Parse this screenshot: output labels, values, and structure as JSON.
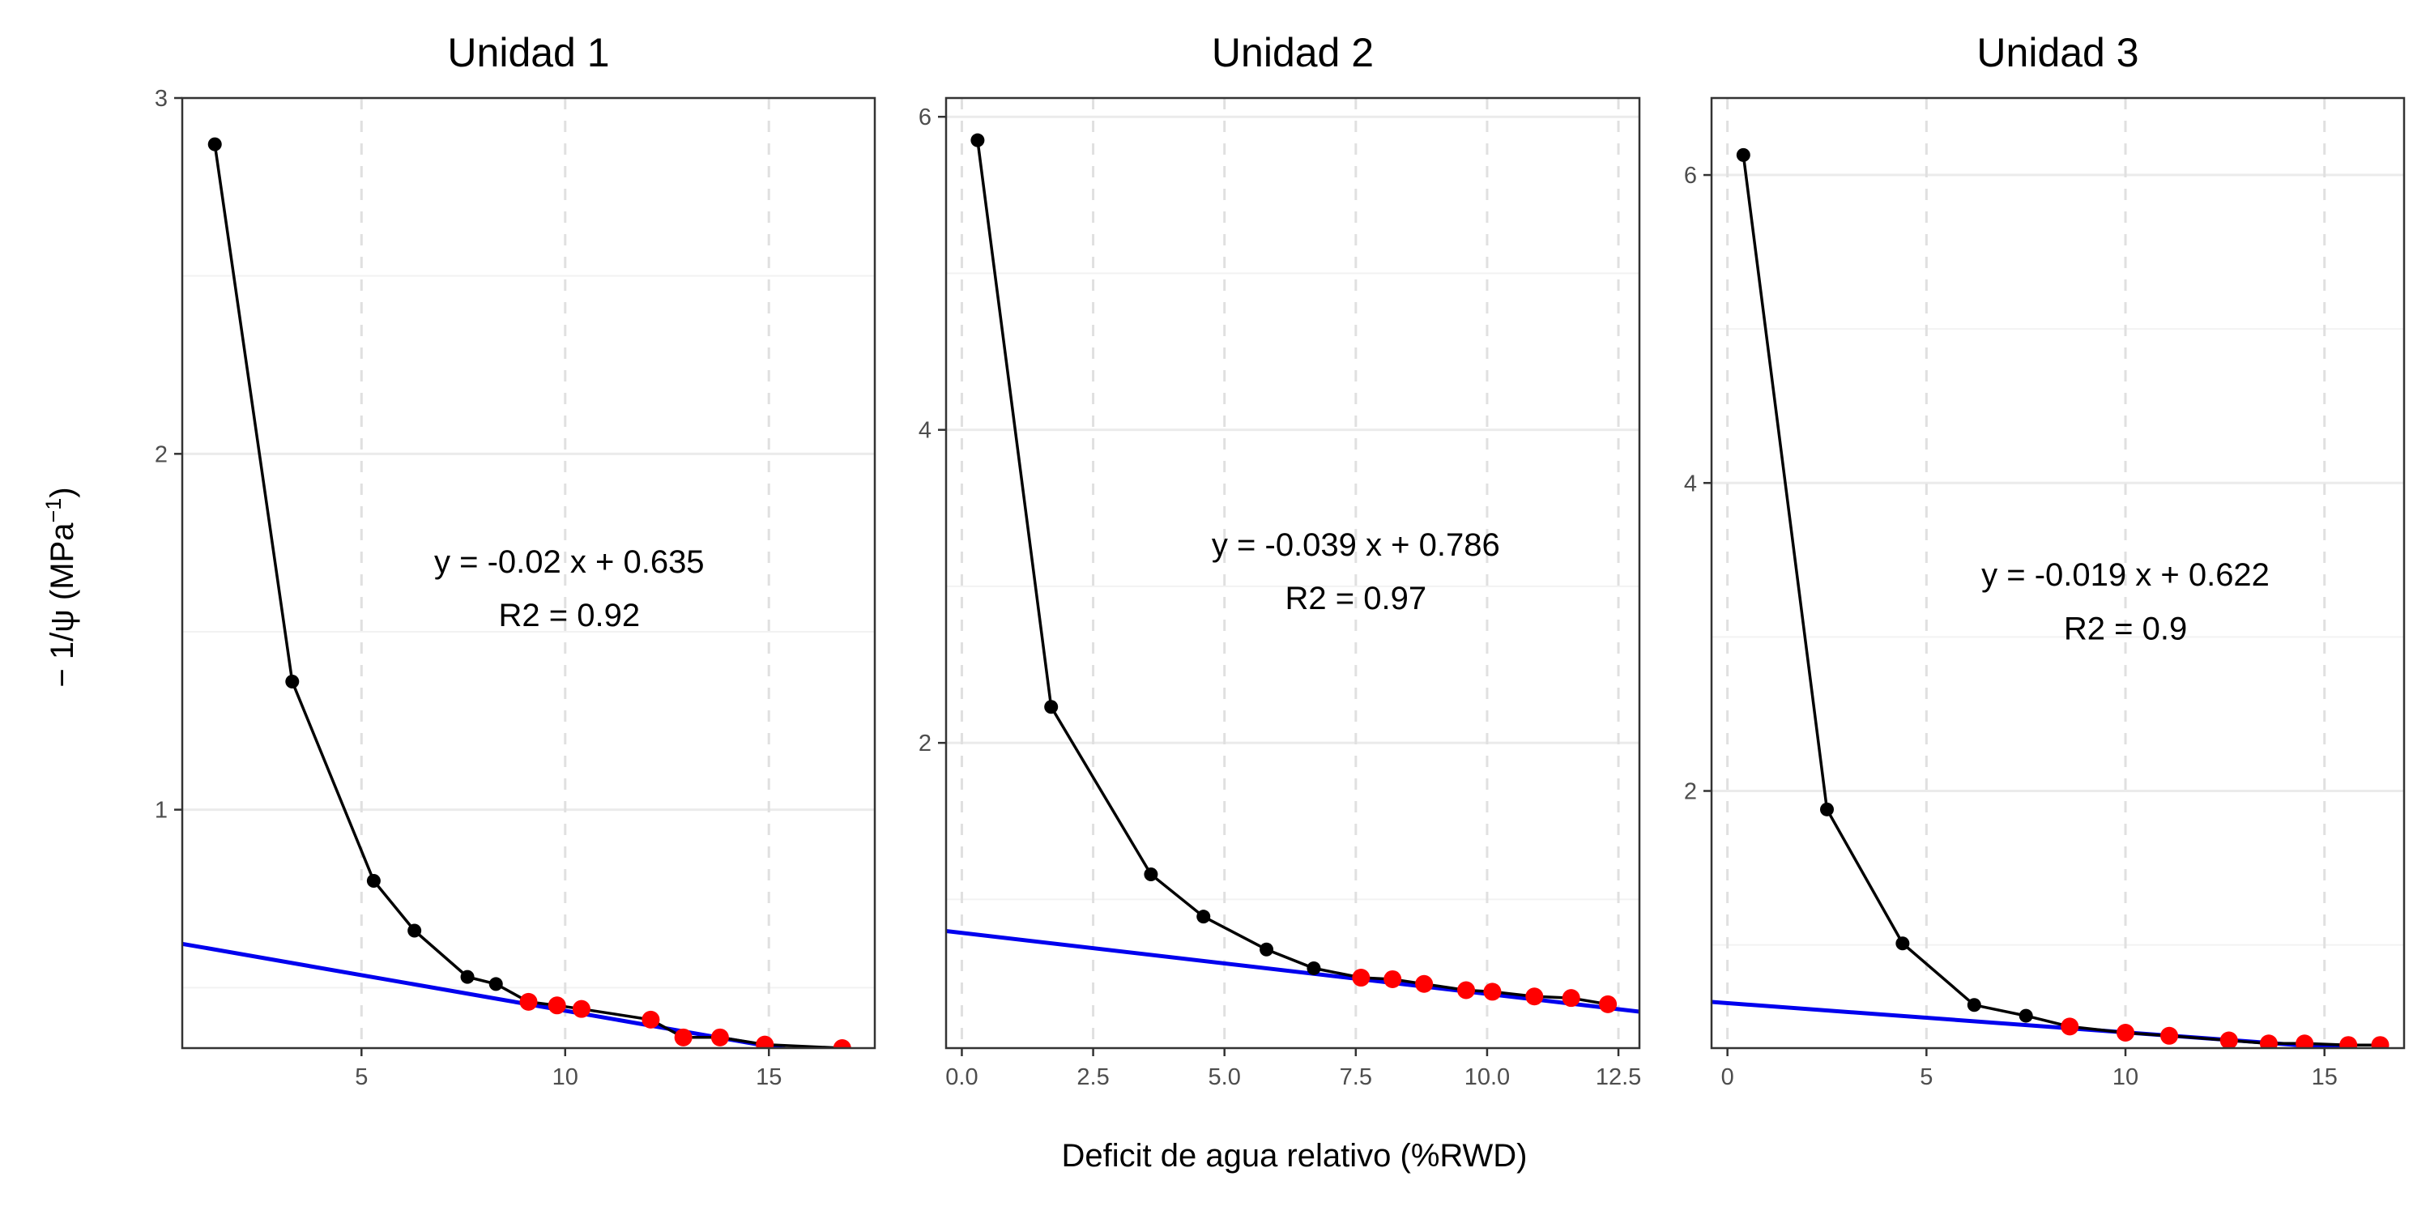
{
  "figure": {
    "xlabel": "Deficit de agua relativo (%RWD)",
    "ylabel": "− 1/ψ (MPa",
    "ylabel_sup": "−1",
    "ylabel_close": ")"
  },
  "colors": {
    "line": "#000000",
    "point": "#000000",
    "fit_point": "#ff0000",
    "fit_line": "#0000ee",
    "grid_major": "#ebebeb",
    "grid_minor": "#f2f2f2",
    "grid_dashed": "#e0e0e0",
    "panel_border": "#333333",
    "text": "#000000",
    "tick_text": "#4d4d4d"
  },
  "chart_data": [
    {
      "type": "line",
      "title": "Unidad 1",
      "xlim": [
        0.6,
        17.6
      ],
      "ylim": [
        0.33,
        3.0
      ],
      "xticks": [
        5,
        10,
        15
      ],
      "xtick_labels": [
        "5",
        "10",
        "15"
      ],
      "yticks": [
        1,
        2,
        3
      ],
      "ytick_labels": [
        "1",
        "2",
        "3"
      ],
      "ygrid_minor": [
        0.5,
        1.5,
        2.5
      ],
      "series": [
        {
          "role": "curve",
          "x": [
            1.4,
            3.3,
            5.3,
            6.3,
            7.6,
            8.3,
            9.1,
            9.8,
            10.4,
            12.1,
            12.9,
            13.8,
            14.9,
            16.8
          ],
          "y": [
            2.87,
            1.36,
            0.8,
            0.66,
            0.53,
            0.51,
            0.46,
            0.45,
            0.44,
            0.41,
            0.36,
            0.36,
            0.34,
            0.33
          ]
        },
        {
          "role": "fit_points",
          "x": [
            9.1,
            9.8,
            10.4,
            12.1,
            12.9,
            13.8,
            14.9,
            16.8
          ],
          "y": [
            0.46,
            0.45,
            0.44,
            0.41,
            0.36,
            0.36,
            0.34,
            0.33
          ]
        },
        {
          "role": "regression",
          "slope": -0.02,
          "intercept": 0.635
        }
      ],
      "annotation": {
        "equation": "y = -0.02 x + 0.635",
        "r2": "R2  = 0.92",
        "x": 10.1,
        "y_equation": 1.69,
        "y_r2": 1.54
      }
    },
    {
      "type": "line",
      "title": "Unidad 2",
      "xlim": [
        -0.3,
        12.9
      ],
      "ylim": [
        0.05,
        6.12
      ],
      "xticks": [
        0,
        2.5,
        5,
        7.5,
        10,
        12.5
      ],
      "xtick_labels": [
        "0.0",
        "2.5",
        "5.0",
        "7.5",
        "10.0",
        "12.5"
      ],
      "yticks": [
        2,
        4,
        6
      ],
      "ytick_labels": [
        "2",
        "4",
        "6"
      ],
      "ygrid_minor": [
        1,
        3,
        5
      ],
      "series": [
        {
          "role": "curve",
          "x": [
            0.3,
            1.7,
            3.6,
            4.6,
            5.8,
            6.7,
            7.6,
            8.2,
            8.8,
            9.6,
            10.1,
            10.9,
            11.6,
            12.3
          ],
          "y": [
            5.85,
            2.23,
            1.16,
            0.89,
            0.68,
            0.56,
            0.5,
            0.49,
            0.46,
            0.42,
            0.41,
            0.38,
            0.37,
            0.33
          ]
        },
        {
          "role": "fit_points",
          "x": [
            7.6,
            8.2,
            8.8,
            9.6,
            10.1,
            10.9,
            11.6,
            12.3
          ],
          "y": [
            0.5,
            0.49,
            0.46,
            0.42,
            0.41,
            0.38,
            0.37,
            0.33
          ]
        },
        {
          "role": "regression",
          "slope": -0.039,
          "intercept": 0.786
        }
      ],
      "annotation": {
        "equation": "y = -0.039 x + 0.786",
        "r2": "R2  = 0.97",
        "x": 7.5,
        "y_equation": 3.25,
        "y_r2": 2.91
      }
    },
    {
      "type": "line",
      "title": "Unidad 3",
      "xlim": [
        -0.4,
        17.0
      ],
      "ylim": [
        0.33,
        6.5
      ],
      "xticks": [
        0,
        5,
        10,
        15
      ],
      "xtick_labels": [
        "0",
        "5",
        "10",
        "15"
      ],
      "yticks": [
        2,
        4,
        6
      ],
      "ytick_labels": [
        "2",
        "4",
        "6"
      ],
      "ygrid_minor": [
        1,
        3,
        5
      ],
      "series": [
        {
          "role": "curve",
          "x": [
            0.4,
            2.5,
            4.4,
            6.2,
            7.5,
            8.6,
            10.0,
            11.1,
            12.6,
            13.6,
            14.5,
            15.6,
            16.4
          ],
          "y": [
            6.13,
            1.88,
            1.01,
            0.61,
            0.54,
            0.47,
            0.43,
            0.41,
            0.38,
            0.36,
            0.36,
            0.35,
            0.35
          ]
        },
        {
          "role": "fit_points",
          "x": [
            8.6,
            10.0,
            11.1,
            12.6,
            13.6,
            14.5,
            15.6,
            16.4
          ],
          "y": [
            0.47,
            0.43,
            0.41,
            0.38,
            0.36,
            0.36,
            0.35,
            0.35
          ]
        },
        {
          "role": "regression",
          "slope": -0.019,
          "intercept": 0.622
        }
      ],
      "annotation": {
        "equation": "y = -0.019 x + 0.622",
        "r2": "R2  = 0.9",
        "x": 10.0,
        "y_equation": 3.39,
        "y_r2": 3.04
      }
    }
  ]
}
